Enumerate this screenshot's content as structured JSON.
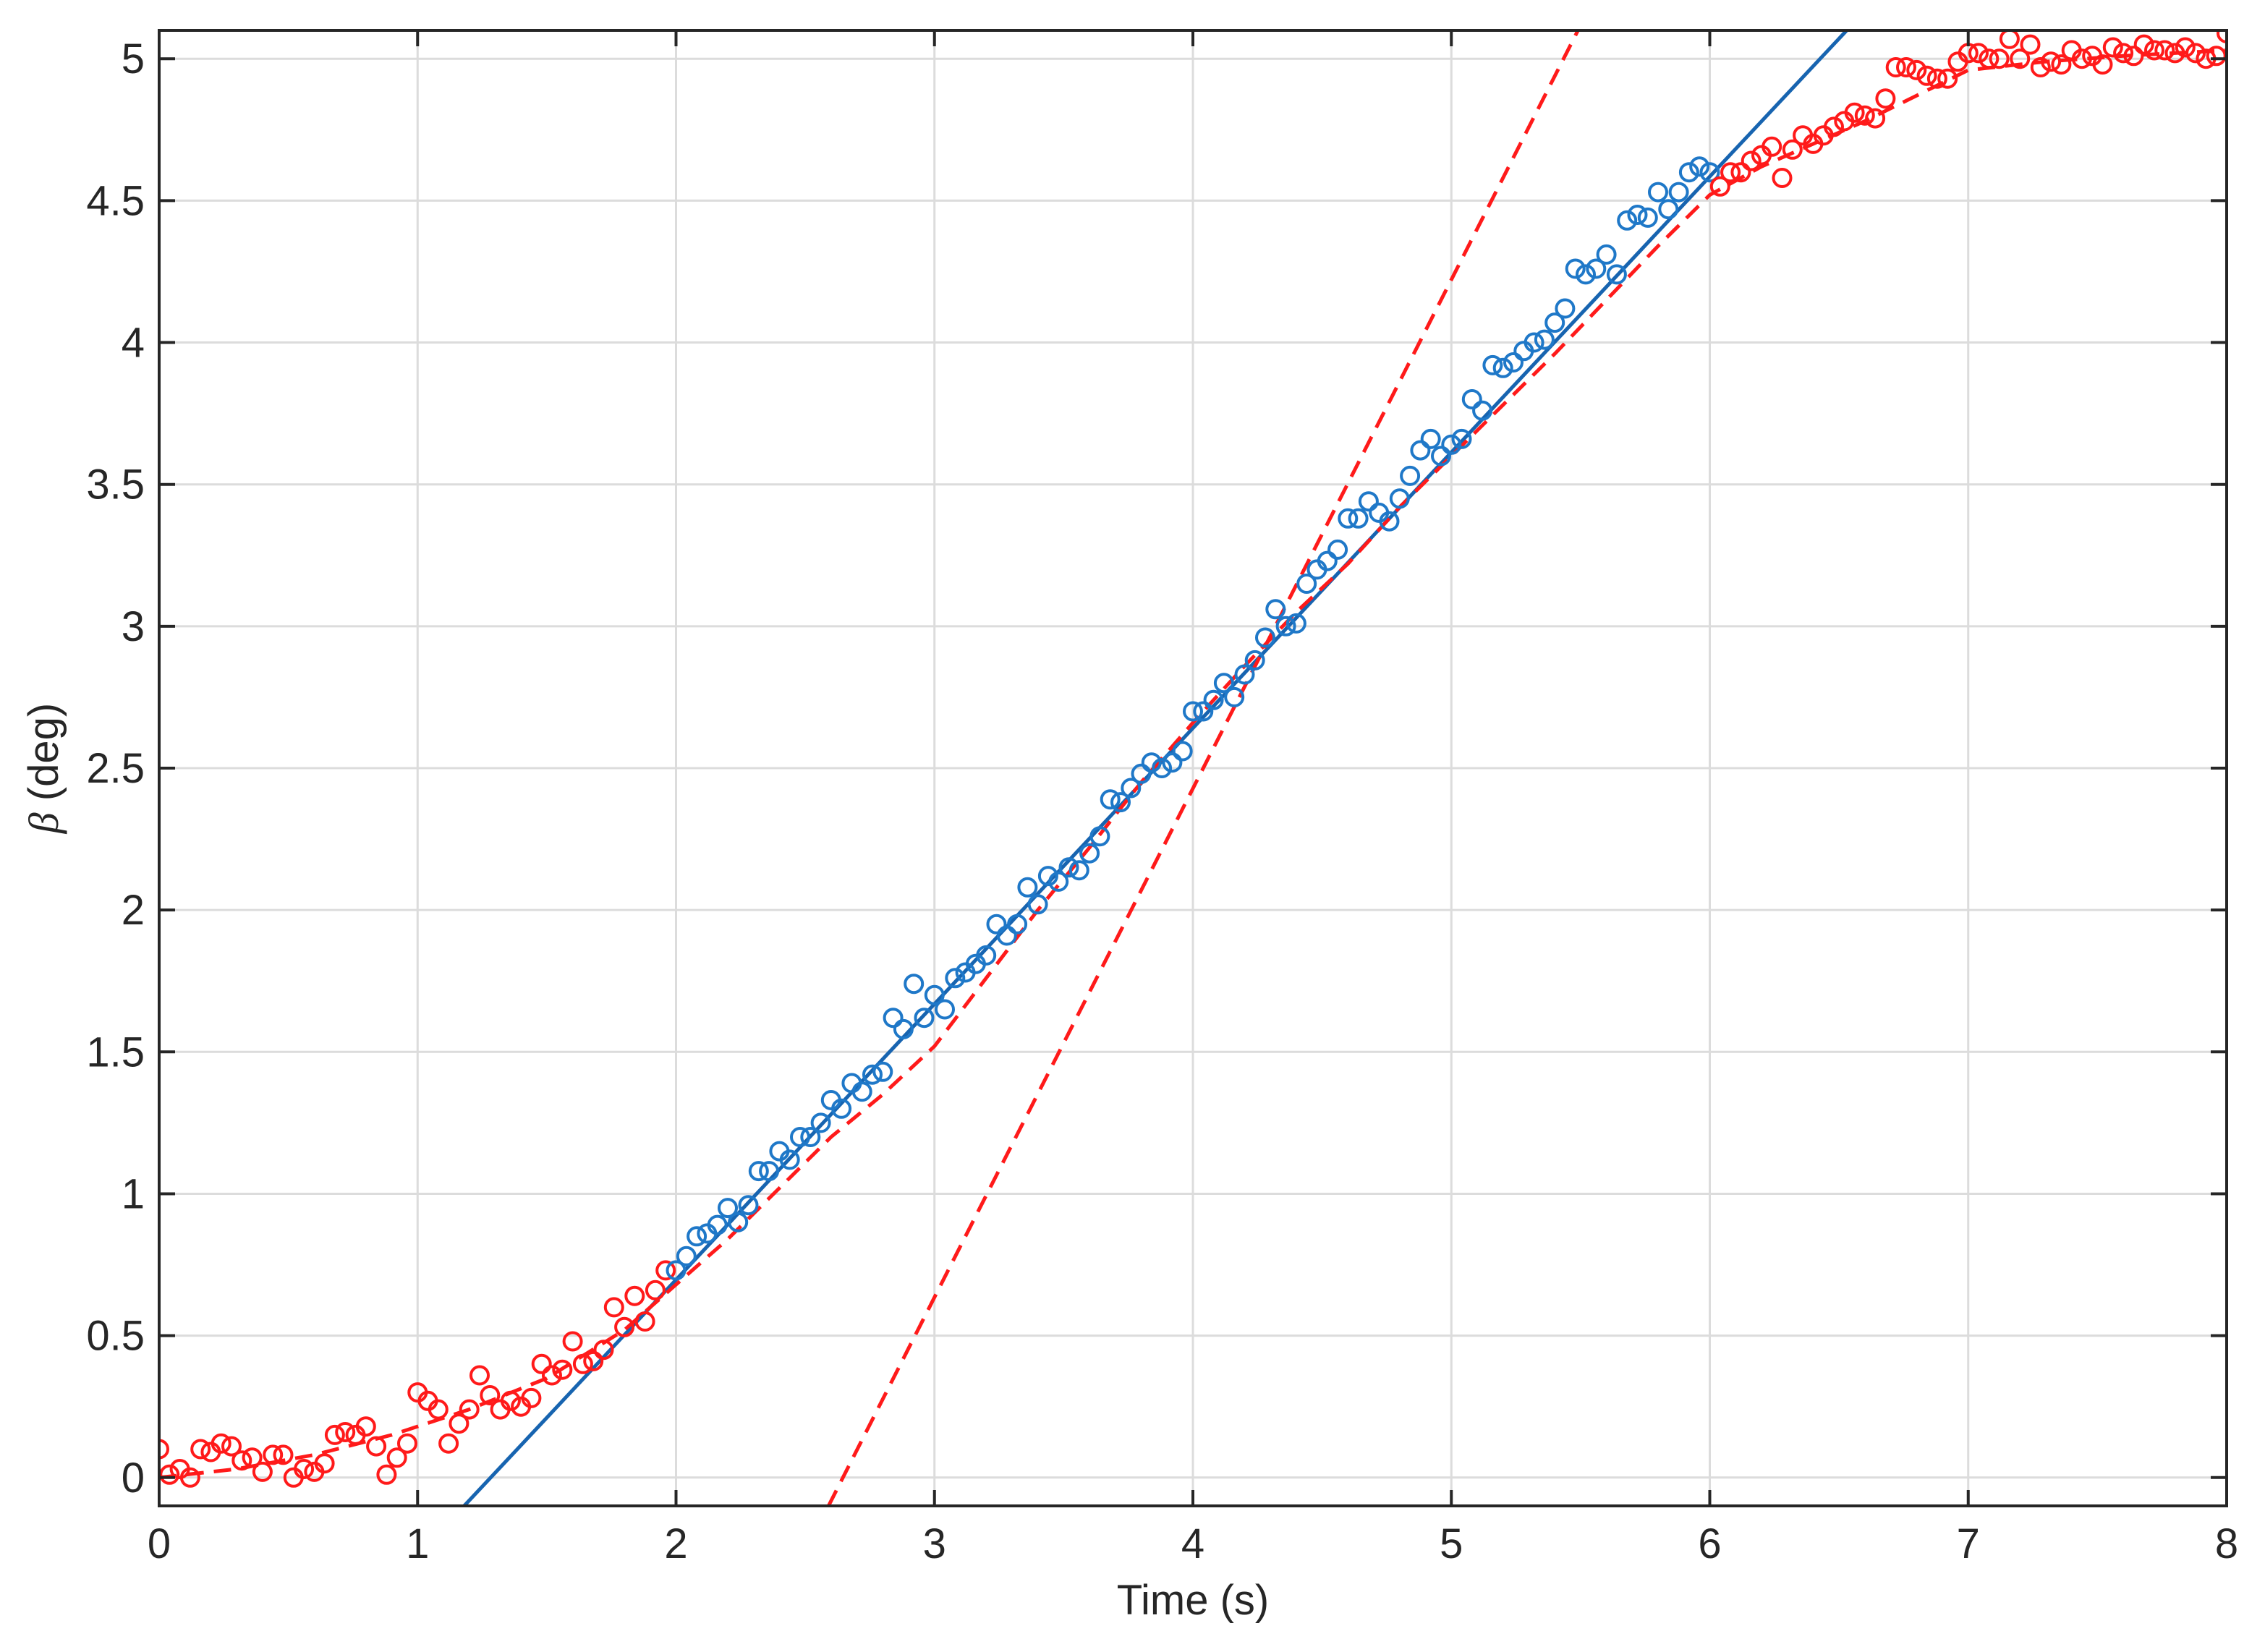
{
  "chart_data": {
    "type": "scatter",
    "title": "",
    "xlabel": "Time (s)",
    "ylabel_symbol": "β",
    "ylabel_unit": "(deg)",
    "xlim": [
      0,
      8
    ],
    "ylim": [
      -0.1,
      5.1
    ],
    "xticks": [
      0,
      1,
      2,
      3,
      4,
      5,
      6,
      7,
      8
    ],
    "yticks": [
      0,
      0.5,
      1,
      1.5,
      2,
      2.5,
      3,
      3.5,
      4,
      4.5,
      5
    ],
    "ytick_labels": [
      "0",
      "0.5",
      "1",
      "1.5",
      "2",
      "2.5",
      "3",
      "3.5",
      "4",
      "4.5",
      "5"
    ],
    "grid": true,
    "legend": "none",
    "colors": {
      "red": "#ff1a1a",
      "blue": "#1f78c8",
      "blue_line": "#1764b0",
      "red_dashed": "#ff1a1a"
    },
    "series": [
      {
        "marker": "circle",
        "color": "red",
        "kind": "scatter",
        "x": [
          0,
          0.04,
          0.08,
          0.12,
          0.16,
          0.2,
          0.24,
          0.28,
          0.32,
          0.36,
          0.4,
          0.44,
          0.48,
          0.52,
          0.56,
          0.6,
          0.64,
          0.68,
          0.72,
          0.76,
          0.8,
          0.84,
          0.88,
          0.92,
          0.96,
          1.0,
          1.04,
          1.08,
          1.12,
          1.16,
          1.2,
          1.24,
          1.28,
          1.32,
          1.36,
          1.4,
          1.44,
          1.48,
          1.52,
          1.56,
          1.6,
          1.64,
          1.68,
          1.72,
          1.76,
          1.8,
          1.84,
          1.88,
          1.92,
          1.96
        ],
        "y": [
          0.1,
          0.01,
          0.03,
          0.0,
          0.1,
          0.09,
          0.12,
          0.11,
          0.06,
          0.07,
          0.02,
          0.08,
          0.08,
          0.0,
          0.03,
          0.02,
          0.05,
          0.15,
          0.16,
          0.15,
          0.18,
          0.11,
          0.01,
          0.07,
          0.12,
          0.3,
          0.27,
          0.24,
          0.12,
          0.19,
          0.24,
          0.36,
          0.29,
          0.24,
          0.27,
          0.25,
          0.28,
          0.4,
          0.36,
          0.38,
          0.48,
          0.4,
          0.41,
          0.45,
          0.6,
          0.53,
          0.64,
          0.55,
          0.66,
          0.73
        ]
      },
      {
        "marker": "circle",
        "color": "blue",
        "kind": "scatter",
        "x": [
          2.0,
          2.04,
          2.08,
          2.12,
          2.16,
          2.2,
          2.24,
          2.28,
          2.32,
          2.36,
          2.4,
          2.44,
          2.48,
          2.52,
          2.56,
          2.6,
          2.64,
          2.68,
          2.72,
          2.76,
          2.8,
          2.84,
          2.88,
          2.92,
          2.96,
          3.0,
          3.04,
          3.08,
          3.12,
          3.16,
          3.2,
          3.24,
          3.28,
          3.32,
          3.36,
          3.4,
          3.44,
          3.48,
          3.52,
          3.56,
          3.6,
          3.64,
          3.68,
          3.72,
          3.76,
          3.8,
          3.84,
          3.88,
          3.92,
          3.96,
          4.0,
          4.04,
          4.08,
          4.12,
          4.16,
          4.2,
          4.24,
          4.28,
          4.32,
          4.36,
          4.4,
          4.44,
          4.48,
          4.52,
          4.56,
          4.6,
          4.64,
          4.68,
          4.72,
          4.76,
          4.8,
          4.84,
          4.88,
          4.92,
          4.96,
          5.0,
          5.04,
          5.08,
          5.12,
          5.16,
          5.2,
          5.24,
          5.28,
          5.32,
          5.36,
          5.4,
          5.44,
          5.48,
          5.52,
          5.56,
          5.6,
          5.64,
          5.68,
          5.72,
          5.76,
          5.8,
          5.84,
          5.88,
          5.92,
          5.96,
          6.0
        ],
        "y": [
          0.73,
          0.78,
          0.85,
          0.86,
          0.89,
          0.95,
          0.9,
          0.96,
          1.08,
          1.08,
          1.15,
          1.12,
          1.2,
          1.2,
          1.25,
          1.33,
          1.3,
          1.39,
          1.36,
          1.42,
          1.43,
          1.62,
          1.58,
          1.74,
          1.62,
          1.7,
          1.65,
          1.76,
          1.78,
          1.81,
          1.84,
          1.95,
          1.91,
          1.95,
          2.08,
          2.02,
          2.12,
          2.1,
          2.15,
          2.14,
          2.2,
          2.26,
          2.39,
          2.38,
          2.43,
          2.48,
          2.52,
          2.5,
          2.52,
          2.56,
          2.7,
          2.7,
          2.74,
          2.8,
          2.75,
          2.83,
          2.88,
          2.96,
          3.06,
          3.0,
          3.01,
          3.15,
          3.2,
          3.23,
          3.27,
          3.38,
          3.38,
          3.44,
          3.4,
          3.37,
          3.45,
          3.53,
          3.62,
          3.66,
          3.6,
          3.64,
          3.66,
          3.8,
          3.76,
          3.92,
          3.91,
          3.93,
          3.97,
          4.0,
          4.01,
          4.07,
          4.12,
          4.26,
          4.24,
          4.26,
          4.31,
          4.24,
          4.43,
          4.45,
          4.44,
          4.53,
          4.47,
          4.53,
          4.6,
          4.62,
          4.6
        ]
      },
      {
        "marker": "circle",
        "color": "red",
        "kind": "scatter",
        "x": [
          6.04,
          6.08,
          6.12,
          6.16,
          6.2,
          6.24,
          6.28,
          6.32,
          6.36,
          6.4,
          6.44,
          6.48,
          6.52,
          6.56,
          6.6,
          6.64,
          6.68,
          6.72,
          6.76,
          6.8,
          6.84,
          6.88,
          6.92,
          6.96,
          7.0,
          7.04,
          7.08,
          7.12,
          7.16,
          7.2,
          7.24,
          7.28,
          7.32,
          7.36,
          7.4,
          7.44,
          7.48,
          7.52,
          7.56,
          7.6,
          7.64,
          7.68,
          7.72,
          7.76,
          7.8,
          7.84,
          7.88,
          7.92,
          7.96,
          8.0
        ],
        "y": [
          4.55,
          4.6,
          4.6,
          4.64,
          4.66,
          4.69,
          4.58,
          4.68,
          4.73,
          4.7,
          4.73,
          4.76,
          4.78,
          4.81,
          4.8,
          4.79,
          4.86,
          4.97,
          4.97,
          4.96,
          4.94,
          4.93,
          4.93,
          4.99,
          5.02,
          5.02,
          5.0,
          5.0,
          5.07,
          5.0,
          5.05,
          4.97,
          4.99,
          4.98,
          5.03,
          5.0,
          5.01,
          4.98,
          5.04,
          5.02,
          5.01,
          5.05,
          5.03,
          5.03,
          5.02,
          5.04,
          5.02,
          5.0,
          5.01,
          5.09
        ]
      },
      {
        "kind": "line",
        "style": "solid",
        "color": "blue_line",
        "x": [
          1.18,
          6.53
        ],
        "y": [
          -0.1,
          5.1
        ]
      },
      {
        "kind": "line",
        "style": "dashed",
        "color": "red_dashed",
        "x": [
          2.59,
          5.49
        ],
        "y": [
          -0.1,
          5.1
        ]
      },
      {
        "kind": "line",
        "style": "dashed",
        "color": "red_dashed",
        "x": [
          0,
          0.3,
          0.6,
          0.9,
          1.2,
          1.5,
          1.8,
          2.0,
          2.2,
          2.4,
          2.6,
          2.8,
          3.0,
          3.2,
          3.4,
          3.6,
          3.8,
          4.0,
          4.2,
          4.4,
          4.6,
          4.8,
          5.0,
          5.2,
          5.4,
          5.6,
          5.8,
          6.0,
          6.2,
          6.4,
          6.6,
          6.8,
          7.0,
          7.3,
          7.6,
          8.0
        ],
        "y": [
          0.0,
          0.03,
          0.08,
          0.15,
          0.24,
          0.35,
          0.52,
          0.68,
          0.84,
          1.02,
          1.2,
          1.35,
          1.52,
          1.76,
          2.0,
          2.22,
          2.45,
          2.66,
          2.86,
          3.05,
          3.22,
          3.42,
          3.6,
          3.78,
          3.96,
          4.15,
          4.34,
          4.52,
          4.62,
          4.7,
          4.78,
          4.87,
          4.96,
          4.99,
          5.01,
          5.03
        ]
      }
    ]
  }
}
